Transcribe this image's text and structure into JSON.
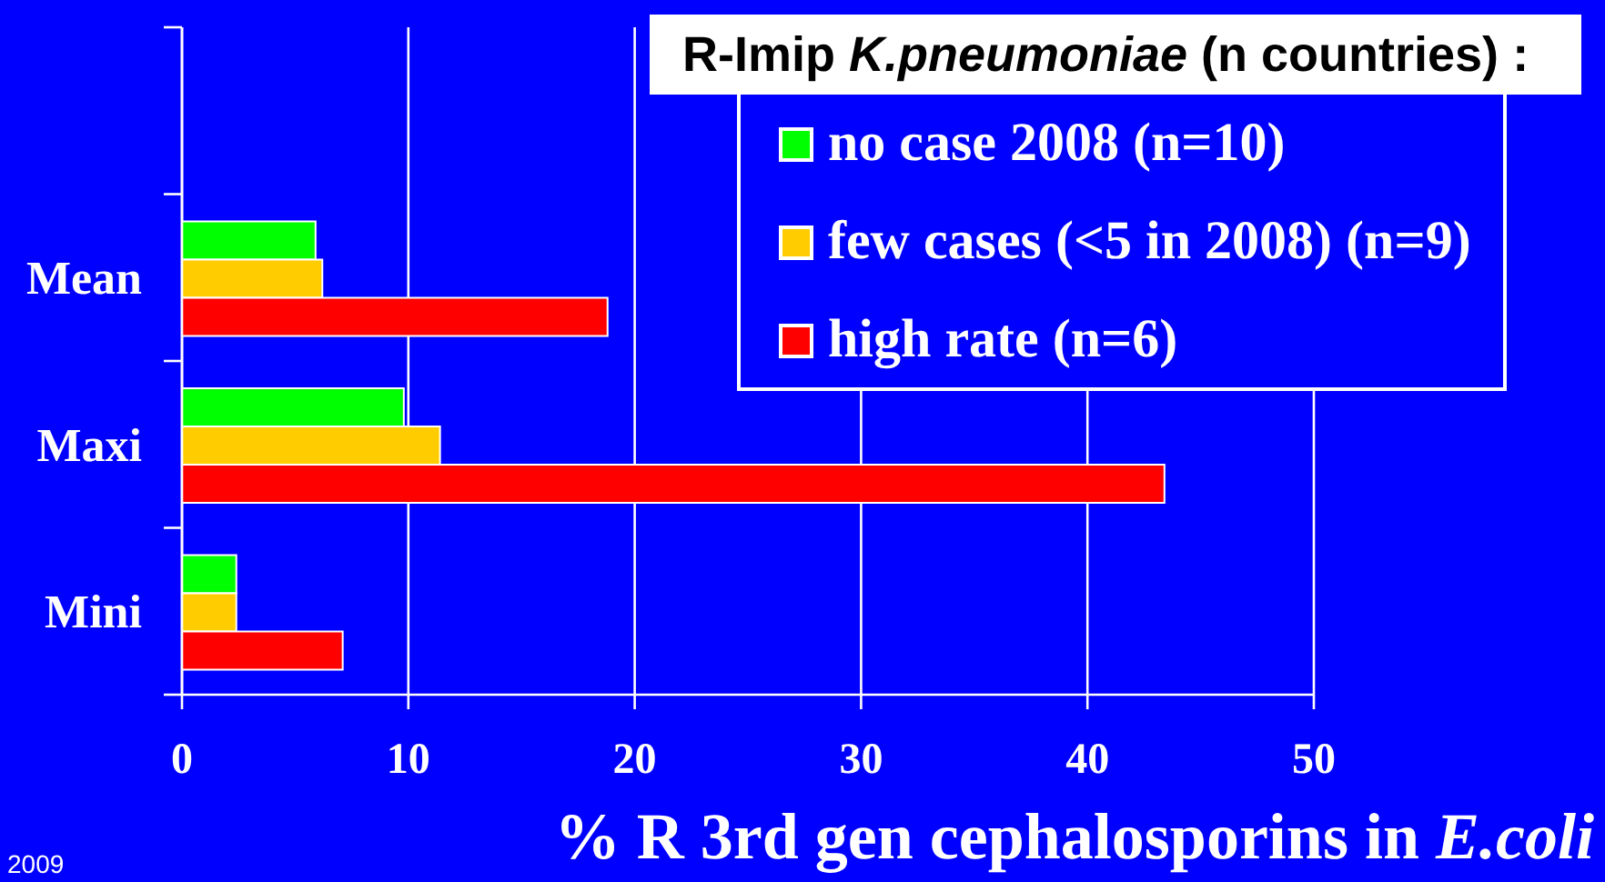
{
  "chart_data": {
    "type": "bar",
    "orientation": "horizontal",
    "categories": [
      null,
      "Mean",
      "Maxi",
      "Mini"
    ],
    "series": [
      {
        "name": "no case 2008 (n=10)",
        "color": "#00ff00",
        "values": [
          null,
          5.9,
          9.8,
          2.4
        ]
      },
      {
        "name": "few cases (<5 in 2008) (n=9)",
        "color": "#ffcc00",
        "values": [
          null,
          6.2,
          11.4,
          2.4
        ]
      },
      {
        "name": "high rate (n=6)",
        "color": "#ff0000",
        "values": [
          null,
          18.8,
          43.4,
          7.1
        ]
      }
    ],
    "xlim": [
      0,
      50
    ],
    "xticks": [
      0,
      10,
      20,
      30,
      40,
      50
    ],
    "xlabel": "% R 3rd gen cephalosporins in E.coli",
    "legend_title": "R-Imip K.pneumoniae (n countries) :",
    "legend": "top right",
    "grid": "x",
    "annotations": [
      "2009"
    ]
  }
}
